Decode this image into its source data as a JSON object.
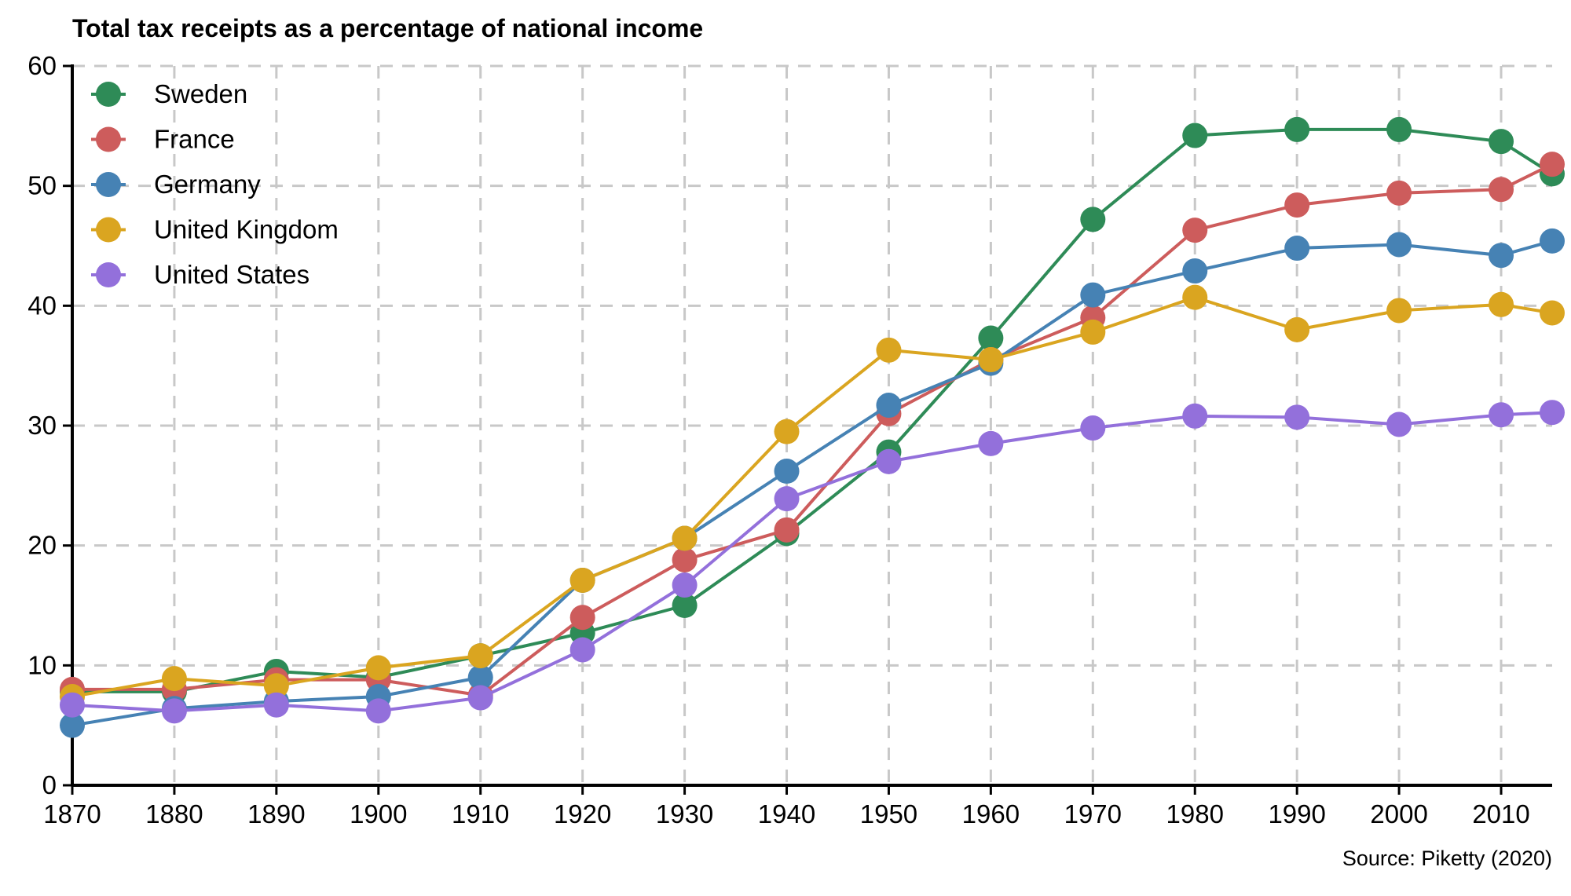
{
  "chart_data": {
    "type": "line",
    "title": "Total tax receipts as a percentage of national income",
    "source": "Source: Piketty (2020)",
    "xlabel": "",
    "ylabel": "",
    "x": [
      1870,
      1880,
      1890,
      1900,
      1910,
      1920,
      1930,
      1940,
      1950,
      1960,
      1970,
      1980,
      1990,
      2000,
      2010,
      2015
    ],
    "xlim": [
      1870,
      2015
    ],
    "ylim": [
      0,
      60
    ],
    "xticks": [
      "1870",
      "1880",
      "1890",
      "1900",
      "1910",
      "1920",
      "1930",
      "1940",
      "1950",
      "1960",
      "1970",
      "1980",
      "1990",
      "2000",
      "2010"
    ],
    "yticks": [
      "0",
      "10",
      "20",
      "30",
      "40",
      "50",
      "60"
    ],
    "grid": true,
    "legend_position": "top-left",
    "series": [
      {
        "name": "Sweden",
        "color": "#2e8b57",
        "values": [
          7.8,
          7.8,
          9.5,
          9.0,
          10.8,
          12.7,
          15.0,
          21.0,
          27.8,
          37.3,
          47.2,
          54.2,
          54.7,
          54.7,
          53.7,
          51.0
        ]
      },
      {
        "name": "France",
        "color": "#cd5c5c",
        "values": [
          8.0,
          8.0,
          8.8,
          8.8,
          7.5,
          14.0,
          18.8,
          21.3,
          31.0,
          35.5,
          39.0,
          46.3,
          48.4,
          49.4,
          49.7,
          51.8
        ]
      },
      {
        "name": "Germany",
        "color": "#4682b4",
        "values": [
          5.0,
          6.4,
          7.0,
          7.4,
          9.0,
          17.1,
          20.6,
          26.2,
          31.7,
          35.2,
          40.9,
          42.9,
          44.8,
          45.1,
          44.2,
          45.4
        ]
      },
      {
        "name": "United Kingdom",
        "color": "#daa520",
        "values": [
          7.4,
          8.9,
          8.3,
          9.8,
          10.8,
          17.1,
          20.6,
          29.5,
          36.3,
          35.5,
          37.8,
          40.7,
          38.0,
          39.6,
          40.1,
          39.4
        ]
      },
      {
        "name": "United States",
        "color": "#9370db",
        "values": [
          6.7,
          6.2,
          6.7,
          6.2,
          7.3,
          11.3,
          16.7,
          23.9,
          27.0,
          28.5,
          29.8,
          30.8,
          30.7,
          30.1,
          30.9,
          31.1
        ]
      }
    ]
  }
}
